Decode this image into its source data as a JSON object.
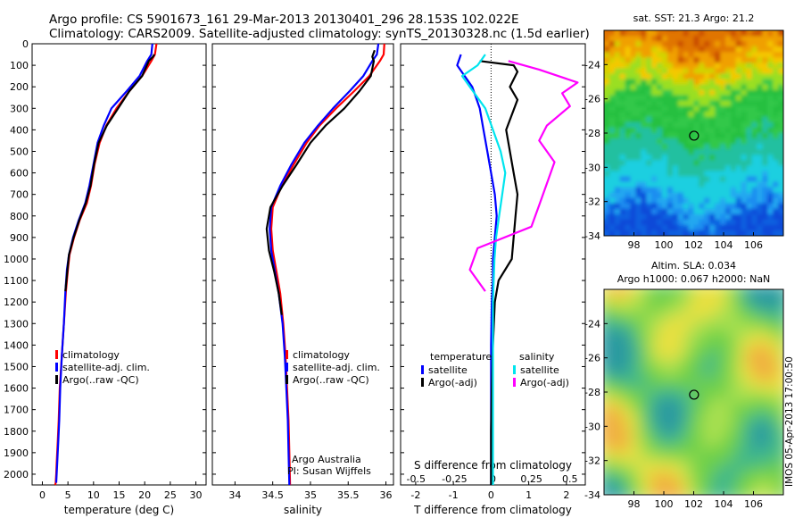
{
  "header": {
    "line1": "Argo profile: CS 5901673_161 29-Mar-2013 20130401_296 28.153S 102.022E",
    "line2": "Climatology: CARS2009. Satellite-adjusted climatology: synTS_20130328.nc (1.5d earlier)"
  },
  "credits": {
    "org": "Argo Australia",
    "pi": "PI: Susan Wijffels",
    "stamp": "IMOS 05-Apr-2013 17:00:50"
  },
  "colors": {
    "climatology": "#ff0000",
    "satellite": "#0000ff",
    "argo": "#000000",
    "sal_satellite": "#00e5ee",
    "sal_argo": "#ff00ff"
  },
  "chart_data": [
    {
      "type": "line",
      "xlabel": "temperature (deg C)",
      "ylabel": "",
      "xlim": [
        -2,
        32
      ],
      "ylim": [
        2050,
        0
      ],
      "xticks": [
        0,
        5,
        10,
        15,
        20,
        25,
        30
      ],
      "yticks": [
        0,
        100,
        200,
        300,
        400,
        500,
        600,
        700,
        800,
        900,
        1000,
        1100,
        1200,
        1300,
        1400,
        1500,
        1600,
        1700,
        1800,
        1900,
        2000
      ],
      "legend": [
        "climatology",
        "satellite-adj. clim.",
        "Argo(..raw -QC)"
      ],
      "legend_colors": [
        "#ff0000",
        "#0000ff",
        "#000000"
      ],
      "series": [
        {
          "name": "climatology",
          "color": "#ff0000",
          "x": [
            22.3,
            22.0,
            21.3,
            19.5,
            17.0,
            14.5,
            12.5,
            11.2,
            10.2,
            9.5,
            8.7,
            7.3,
            6.2,
            5.3,
            5.0,
            4.6,
            4.2,
            3.8,
            3.4,
            3.2,
            3.0,
            2.8,
            2.7,
            2.6,
            2.5
          ],
          "y": [
            0,
            50,
            80,
            150,
            220,
            300,
            380,
            460,
            560,
            660,
            740,
            820,
            900,
            980,
            1050,
            1150,
            1300,
            1450,
            1600,
            1750,
            1850,
            1950,
            2000,
            2040,
            2050
          ]
        },
        {
          "name": "satellite-adj. clim.",
          "color": "#0000ff",
          "x": [
            21.5,
            21.3,
            20.5,
            19.0,
            16.5,
            13.5,
            12.0,
            10.8,
            10.0,
            9.2,
            8.4,
            7.1,
            6.0,
            5.2,
            4.8,
            4.5,
            4.2,
            3.8,
            3.5,
            3.3,
            3.1,
            2.9,
            2.8,
            2.7
          ],
          "y": [
            0,
            50,
            80,
            150,
            220,
            300,
            380,
            460,
            560,
            660,
            740,
            820,
            900,
            980,
            1050,
            1150,
            1300,
            1450,
            1600,
            1750,
            1850,
            1950,
            2000,
            2040
          ]
        },
        {
          "name": "Argo(..raw -QC)",
          "color": "#000000",
          "x": [
            21.9,
            21.6,
            20.8,
            19.5,
            17.0,
            14.8,
            12.6,
            11.0,
            10.1,
            9.4,
            8.5,
            7.2,
            6.1,
            5.2,
            4.9,
            4.5
          ],
          "y": [
            50,
            60,
            80,
            150,
            220,
            300,
            380,
            460,
            560,
            660,
            740,
            820,
            900,
            980,
            1050,
            1150
          ]
        }
      ]
    },
    {
      "type": "line",
      "xlabel": "salinity",
      "ylabel": "",
      "xlim": [
        33.7,
        36.1
      ],
      "ylim": [
        2050,
        0
      ],
      "xticks": [
        34,
        34.5,
        35,
        35.5,
        36
      ],
      "legend": [
        "climatology",
        "satellite-adj. clim.",
        "Argo(..raw -QC)"
      ],
      "legend_colors": [
        "#ff0000",
        "#0000ff",
        "#000000"
      ],
      "series": [
        {
          "name": "climatology",
          "color": "#ff0000",
          "x": [
            35.98,
            35.97,
            35.92,
            35.78,
            35.58,
            35.34,
            35.12,
            34.95,
            34.78,
            34.62,
            34.5,
            34.48,
            34.5,
            34.55,
            34.6,
            34.64,
            34.67,
            34.69,
            34.71,
            34.72,
            34.73
          ],
          "y": [
            0,
            50,
            80,
            150,
            220,
            300,
            380,
            460,
            560,
            660,
            760,
            860,
            960,
            1060,
            1160,
            1300,
            1450,
            1600,
            1750,
            1900,
            2050
          ]
        },
        {
          "name": "satellite-adj. clim.",
          "color": "#0000ff",
          "x": [
            35.9,
            35.88,
            35.82,
            35.7,
            35.52,
            35.3,
            35.1,
            34.92,
            34.75,
            34.6,
            34.48,
            34.46,
            34.48,
            34.53,
            34.58,
            34.63,
            34.66,
            34.68,
            34.7,
            34.71,
            34.72
          ],
          "y": [
            0,
            50,
            80,
            150,
            220,
            300,
            380,
            460,
            560,
            660,
            760,
            860,
            960,
            1060,
            1160,
            1300,
            1450,
            1600,
            1750,
            1900,
            2050
          ]
        },
        {
          "name": "Argo(..raw -QC)",
          "color": "#000000",
          "x": [
            35.85,
            35.82,
            35.84,
            35.8,
            35.65,
            35.45,
            35.2,
            35.0,
            34.82,
            34.63,
            34.47,
            34.42,
            34.45,
            34.52,
            34.58,
            34.62
          ],
          "y": [
            30,
            60,
            80,
            150,
            220,
            300,
            380,
            460,
            560,
            660,
            760,
            860,
            960,
            1060,
            1160,
            1260
          ]
        }
      ]
    },
    {
      "type": "line",
      "xlabel": "T difference from climatology",
      "x2label": "S difference from climatology",
      "xlim": [
        -2.4,
        2.5
      ],
      "x2lim": [
        -0.6,
        0.6
      ],
      "ylim": [
        2050,
        0
      ],
      "xticks": [
        -2,
        -1,
        0,
        1,
        2
      ],
      "x2ticks": [
        -0.5,
        -0.25,
        0,
        0.25,
        0.5
      ],
      "x2ticklabels": [
        "-0.5",
        "-0.25",
        "0",
        "0.25",
        "0.5"
      ],
      "legend_temperature_title": "temperature",
      "legend_salinity_title": "salinity",
      "legend_temperature": [
        "satellite",
        "Argo(-adj)"
      ],
      "legend_salinity": [
        "satellite",
        "Argo(-adj)"
      ],
      "series": [
        {
          "name": "satellite",
          "color": "#0000ff",
          "x": [
            -0.8,
            -0.9,
            -0.7,
            -0.5,
            -0.3,
            -0.2,
            -0.1,
            0.0,
            0.1,
            0.15,
            0.1,
            0.05,
            0.05,
            0.02,
            0.0,
            0.0,
            0.0,
            0.0
          ],
          "y": [
            50,
            100,
            150,
            200,
            300,
            400,
            500,
            600,
            700,
            800,
            900,
            1000,
            1100,
            1200,
            1400,
            1600,
            1800,
            2050
          ]
        },
        {
          "name": "Argo(-adj)",
          "color": "#000000",
          "x": [
            -0.3,
            0.6,
            0.7,
            0.5,
            0.7,
            0.4,
            0.5,
            0.6,
            0.7,
            0.65,
            0.6,
            0.55,
            0.2,
            0.1,
            0.05,
            0.02,
            0.0,
            0.0
          ],
          "y": [
            80,
            100,
            130,
            200,
            260,
            400,
            500,
            600,
            700,
            800,
            900,
            1000,
            1100,
            1200,
            1400,
            1600,
            1800,
            2050
          ]
        },
        {
          "name": "satellite (salinity)",
          "color": "#00e5ee",
          "x": [
            -0.05,
            -0.1,
            -0.2,
            -0.15,
            -0.05,
            0.0,
            0.05,
            0.08,
            0.06,
            0.04,
            0.02,
            0.01,
            0.0,
            0.0,
            0.0,
            0.0
          ],
          "y": [
            50,
            100,
            150,
            200,
            300,
            400,
            500,
            600,
            700,
            800,
            900,
            1000,
            1200,
            1400,
            1600,
            2050
          ]
        },
        {
          "name": "Argo(-adj) (salinity)",
          "color": "#ff00ff",
          "x": [
            0.1,
            0.3,
            0.55,
            0.45,
            0.5,
            0.35,
            0.3,
            0.4,
            0.35,
            0.3,
            0.25,
            -0.1,
            -0.15,
            -0.05
          ],
          "y": [
            80,
            120,
            180,
            230,
            290,
            380,
            450,
            550,
            650,
            750,
            850,
            950,
            1050,
            1150
          ]
        }
      ]
    },
    {
      "type": "heatmap",
      "title": "sat. SST: 21.3 Argo: 21.2",
      "xlim": [
        96,
        108
      ],
      "ylim": [
        -34,
        -22
      ],
      "xticks": [
        98,
        100,
        102,
        104,
        106
      ],
      "yticks": [
        -24,
        -26,
        -28,
        -30,
        -32,
        -34
      ],
      "marker": {
        "lon": 102.022,
        "lat": -28.153
      }
    },
    {
      "type": "heatmap",
      "title_line1": "Altim. SLA: 0.034",
      "title_line2": "Argo h1000: 0.067 h2000: NaN",
      "xlim": [
        96,
        108
      ],
      "ylim": [
        -34,
        -22
      ],
      "xticks": [
        98,
        100,
        102,
        104,
        106
      ],
      "yticks": [
        -24,
        -26,
        -28,
        -30,
        -32,
        -34
      ],
      "marker": {
        "lon": 102.022,
        "lat": -28.153
      }
    }
  ]
}
